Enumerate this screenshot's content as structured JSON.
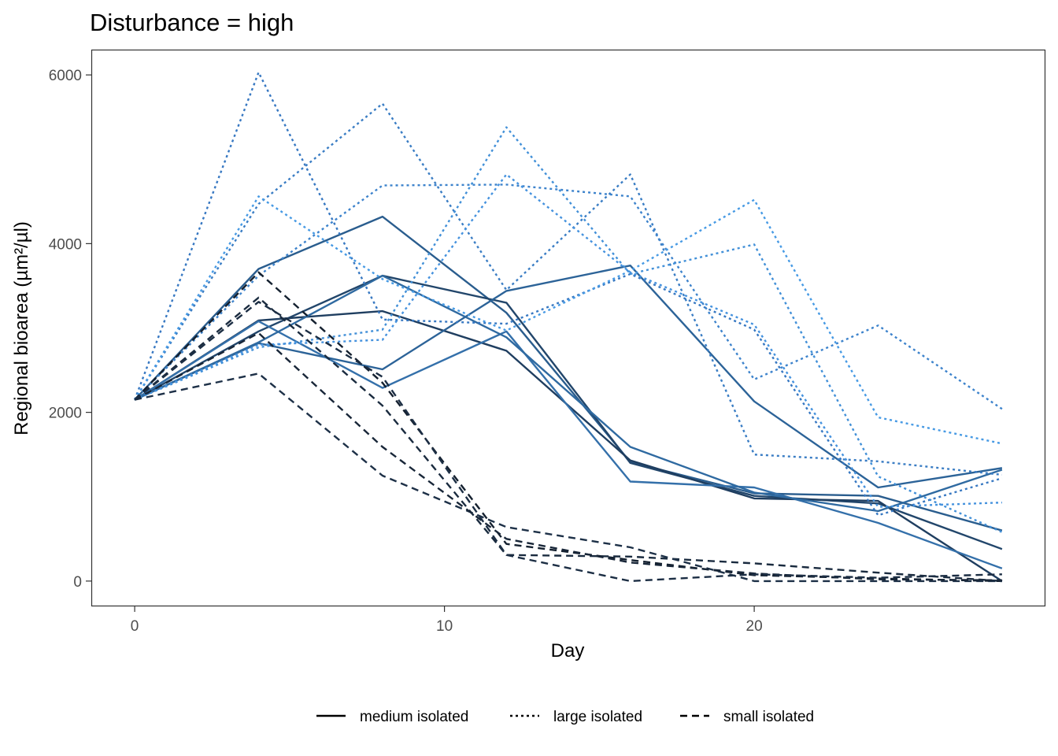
{
  "chart_data": {
    "type": "line",
    "title": "Disturbance = high",
    "xlabel": "Day",
    "ylabel": "Regional bioarea (µm²/µl)",
    "xlim": [
      -1.4,
      29.4
    ],
    "ylim": [
      -300,
      6300
    ],
    "x_ticks": [
      0,
      10,
      20
    ],
    "y_ticks": [
      0,
      2000,
      4000,
      6000
    ],
    "grid": false,
    "legend_position": "bottom",
    "legend": [
      {
        "label": "medium isolated",
        "linetype": "solid"
      },
      {
        "label": "large isolated",
        "linetype": "dotted"
      },
      {
        "label": "small isolated",
        "linetype": "dashed"
      }
    ],
    "x": [
      0,
      4,
      8,
      12,
      16,
      20,
      24,
      28
    ],
    "series": [
      {
        "group": "medium isolated",
        "color": "#2a5d8e",
        "values": [
          2150,
          3700,
          4320,
          3180,
          1410,
          1040,
          1010,
          600
        ]
      },
      {
        "group": "medium isolated",
        "color": "#22466b",
        "values": [
          2150,
          2960,
          3620,
          3300,
          1400,
          1010,
          920,
          380
        ]
      },
      {
        "group": "medium isolated",
        "color": "#1f3e60",
        "values": [
          2150,
          3090,
          3200,
          2730,
          1430,
          980,
          950,
          0
        ]
      },
      {
        "group": "medium isolated",
        "color": "#2c6398",
        "values": [
          2150,
          2820,
          2510,
          3440,
          3740,
          2130,
          1110,
          1340
        ]
      },
      {
        "group": "medium isolated",
        "color": "#3470aa",
        "values": [
          2150,
          3080,
          2290,
          2960,
          1180,
          1110,
          690,
          150
        ]
      },
      {
        "group": "medium isolated",
        "color": "#2f6aa1",
        "values": [
          2150,
          2830,
          3620,
          2890,
          1590,
          1050,
          830,
          1320
        ]
      },
      {
        "group": "large isolated",
        "color": "#3778c2",
        "values": [
          2150,
          6030,
          3100,
          3050,
          3640,
          2980,
          780,
          1220
        ]
      },
      {
        "group": "large isolated",
        "color": "#3a7dc4",
        "values": [
          2150,
          4470,
          5660,
          3450,
          4820,
          1500,
          1420,
          1260
        ]
      },
      {
        "group": "large isolated",
        "color": "#3d83cc",
        "values": [
          2150,
          3620,
          4690,
          4700,
          4560,
          2390,
          3030,
          2040
        ]
      },
      {
        "group": "large isolated",
        "color": "#479ae4",
        "values": [
          2150,
          4560,
          3580,
          2970,
          3680,
          4520,
          1940,
          1630
        ]
      },
      {
        "group": "large isolated",
        "color": "#4290d8",
        "values": [
          2150,
          2770,
          2980,
          5380,
          3640,
          3990,
          1240,
          580
        ]
      },
      {
        "group": "large isolated",
        "color": "#4592de",
        "values": [
          2150,
          2800,
          2860,
          4820,
          3660,
          3040,
          880,
          930
        ]
      },
      {
        "group": "small isolated",
        "color": "#14202f",
        "values": [
          2150,
          3660,
          2350,
          440,
          250,
          70,
          30,
          0
        ]
      },
      {
        "group": "small isolated",
        "color": "#1a2b3f",
        "values": [
          2150,
          3360,
          2080,
          310,
          290,
          210,
          100,
          0
        ]
      },
      {
        "group": "small isolated",
        "color": "#1d3047",
        "values": [
          2150,
          2460,
          1250,
          640,
          400,
          0,
          0,
          0
        ]
      },
      {
        "group": "small isolated",
        "color": "#182638",
        "values": [
          2150,
          2940,
          1590,
          500,
          220,
          90,
          20,
          10
        ]
      },
      {
        "group": "small isolated",
        "color": "#1c2e44",
        "values": [
          2150,
          3310,
          2420,
          310,
          0,
          80,
          40,
          80
        ]
      }
    ]
  }
}
